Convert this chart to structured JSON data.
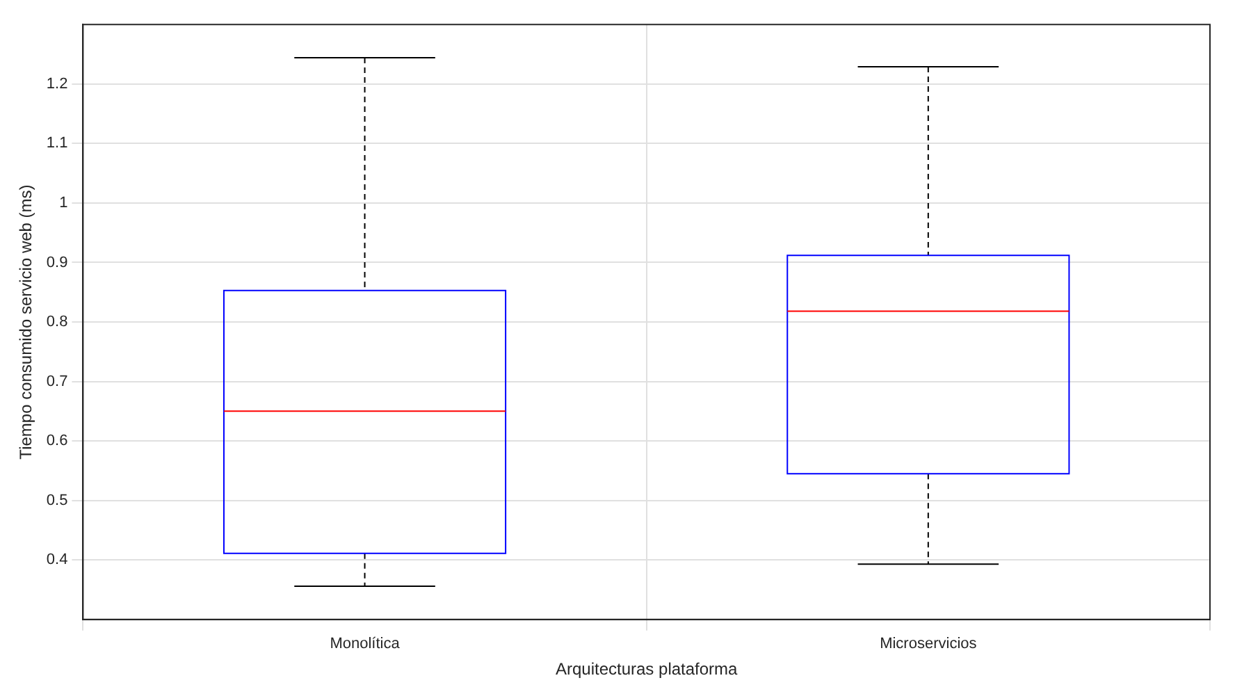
{
  "chart_data": {
    "type": "box",
    "xlabel": "Arquitecturas plataforma",
    "ylabel": "Tiempo consumido servicio web (ms)",
    "categories": [
      "Monolítica",
      "Microservicios"
    ],
    "color": "#0000ff",
    "boxes": [
      {
        "low": 0.356,
        "q1": 0.411,
        "median": 0.65,
        "q3": 0.853,
        "high": 1.244
      },
      {
        "low": 0.393,
        "q1": 0.545,
        "median": 0.818,
        "q3": 0.912,
        "high": 1.229
      }
    ],
    "ylim": [
      0.3,
      1.3
    ],
    "yticks": [
      0.4,
      0.5,
      0.6,
      0.7,
      0.8,
      0.9,
      1,
      1.1,
      1.2
    ],
    "grid": true
  }
}
